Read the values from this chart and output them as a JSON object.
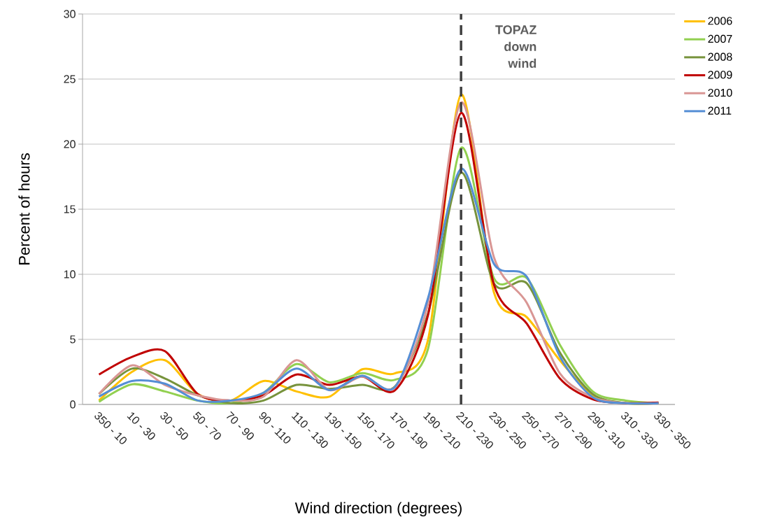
{
  "chart_data": {
    "type": "line",
    "xlabel": "Wind direction (degrees)",
    "ylabel": "Percent of hours",
    "categories": [
      "350 - 10",
      "10 - 30",
      "30 - 50",
      "50 - 70",
      "70 - 90",
      "90 - 110",
      "110 - 130",
      "130 - 150",
      "150 - 170",
      "170 - 190",
      "190 - 210",
      "210 - 230",
      "230 - 250",
      "250 - 270",
      "270 - 290",
      "290 - 310",
      "310 - 330",
      "330 - 350"
    ],
    "series": [
      {
        "name": "2006",
        "color": "#ffc000",
        "values": [
          0.3,
          2.5,
          3.4,
          0.8,
          0.3,
          1.8,
          1.0,
          0.6,
          2.7,
          2.4,
          5.0,
          23.8,
          8.6,
          6.7,
          3.4,
          0.7,
          0.1,
          0.1
        ]
      },
      {
        "name": "2007",
        "color": "#92d050",
        "values": [
          0.2,
          1.55,
          1.0,
          0.3,
          0.1,
          0.9,
          3.1,
          1.7,
          2.4,
          1.9,
          4.3,
          19.7,
          9.7,
          9.7,
          4.6,
          1.0,
          0.3,
          0.1
        ]
      },
      {
        "name": "2008",
        "color": "#77933c",
        "values": [
          0.8,
          2.75,
          2.0,
          0.7,
          0.1,
          0.3,
          1.5,
          1.2,
          1.5,
          1.4,
          7.0,
          17.8,
          9.3,
          9.3,
          4.0,
          0.8,
          0.1,
          0.1
        ]
      },
      {
        "name": "2009",
        "color": "#c00000",
        "values": [
          2.3,
          3.65,
          4.1,
          0.8,
          0.3,
          0.7,
          2.3,
          1.5,
          2.15,
          1.1,
          6.9,
          22.4,
          9.2,
          6.2,
          2.0,
          0.4,
          0.1,
          0.15
        ]
      },
      {
        "name": "2010",
        "color": "#d99694",
        "values": [
          0.8,
          3.0,
          1.5,
          0.7,
          0.3,
          0.6,
          3.4,
          1.1,
          2.15,
          1.35,
          7.8,
          23.2,
          11.3,
          7.8,
          2.4,
          0.55,
          0.1,
          0.1
        ]
      },
      {
        "name": "2011",
        "color": "#558ed5",
        "values": [
          0.6,
          1.8,
          1.6,
          0.3,
          0.3,
          0.9,
          2.75,
          1.1,
          2.2,
          1.35,
          8.2,
          18.1,
          10.8,
          9.8,
          3.7,
          0.55,
          0.1,
          0.1
        ]
      }
    ],
    "ylim": [
      0,
      30
    ],
    "yticks": [
      0,
      5,
      10,
      15,
      20,
      25,
      30
    ],
    "grid": "y",
    "legend": "top right",
    "marker": "none",
    "line_style": "solid",
    "ref_lines": [
      {
        "axis": "x",
        "value": "210 - 230",
        "label": "TOPAZ down wind",
        "color": "#404040",
        "line_style": "dashed"
      }
    ]
  }
}
